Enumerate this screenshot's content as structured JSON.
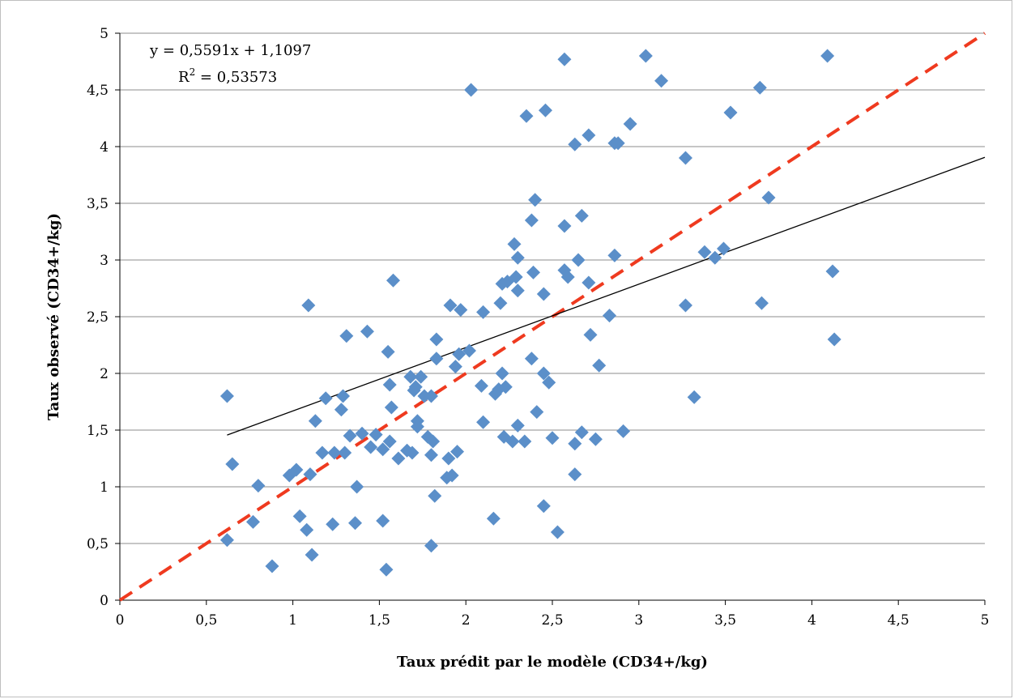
{
  "chart_data": {
    "type": "scatter",
    "title": "",
    "xlabel": "Taux prédit par le modèle (CD34+/kg)",
    "ylabel": "Taux observé (CD34+/kg)",
    "xlim": [
      0,
      5
    ],
    "ylim": [
      0,
      5
    ],
    "x_ticks": [
      "0",
      "0,5",
      "1",
      "1,5",
      "2",
      "2,5",
      "3",
      "3,5",
      "4",
      "4,5",
      "5"
    ],
    "y_ticks": [
      "0",
      "0,5",
      "1",
      "1,5",
      "2",
      "2,5",
      "3",
      "3,5",
      "4",
      "4,5",
      "5"
    ],
    "grid": "horizontal",
    "legend": "none",
    "marker_color": "#5b8fc9",
    "series": [
      {
        "marker": "diamond",
        "points": [
          [
            0.62,
            0.53
          ],
          [
            0.62,
            1.8
          ],
          [
            0.65,
            1.2
          ],
          [
            0.77,
            0.69
          ],
          [
            0.8,
            1.01
          ],
          [
            0.88,
            0.3
          ],
          [
            0.98,
            1.1
          ],
          [
            1.02,
            1.15
          ],
          [
            1.04,
            0.74
          ],
          [
            1.08,
            0.62
          ],
          [
            1.09,
            2.6
          ],
          [
            1.1,
            1.11
          ],
          [
            1.11,
            0.4
          ],
          [
            1.13,
            1.58
          ],
          [
            1.17,
            1.3
          ],
          [
            1.19,
            1.78
          ],
          [
            1.23,
            0.67
          ],
          [
            1.24,
            1.3
          ],
          [
            1.28,
            1.68
          ],
          [
            1.29,
            1.8
          ],
          [
            1.3,
            1.3
          ],
          [
            1.31,
            2.33
          ],
          [
            1.33,
            1.45
          ],
          [
            1.36,
            0.68
          ],
          [
            1.37,
            1.0
          ],
          [
            1.4,
            1.47
          ],
          [
            1.43,
            2.37
          ],
          [
            1.45,
            1.35
          ],
          [
            1.48,
            1.46
          ],
          [
            1.52,
            1.33
          ],
          [
            1.52,
            0.7
          ],
          [
            1.54,
            0.27
          ],
          [
            1.55,
            2.19
          ],
          [
            1.56,
            1.4
          ],
          [
            1.56,
            1.9
          ],
          [
            1.57,
            1.7
          ],
          [
            1.58,
            2.82
          ],
          [
            1.61,
            1.25
          ],
          [
            1.66,
            1.32
          ],
          [
            1.68,
            1.97
          ],
          [
            1.69,
            1.3
          ],
          [
            1.7,
            1.85
          ],
          [
            1.71,
            1.88
          ],
          [
            1.72,
            1.58
          ],
          [
            1.72,
            1.53
          ],
          [
            1.74,
            1.97
          ],
          [
            1.76,
            1.8
          ],
          [
            1.78,
            1.44
          ],
          [
            1.8,
            0.48
          ],
          [
            1.8,
            1.28
          ],
          [
            1.8,
            1.8
          ],
          [
            1.81,
            1.4
          ],
          [
            1.82,
            0.92
          ],
          [
            1.83,
            2.3
          ],
          [
            1.83,
            2.13
          ],
          [
            1.89,
            1.08
          ],
          [
            1.9,
            1.25
          ],
          [
            1.91,
            2.6
          ],
          [
            1.92,
            1.1
          ],
          [
            1.94,
            2.06
          ],
          [
            1.95,
            1.31
          ],
          [
            1.96,
            2.17
          ],
          [
            1.97,
            2.56
          ],
          [
            2.02,
            2.2
          ],
          [
            2.03,
            4.5
          ],
          [
            2.09,
            1.89
          ],
          [
            2.1,
            2.54
          ],
          [
            2.1,
            1.57
          ],
          [
            2.16,
            0.72
          ],
          [
            2.17,
            1.82
          ],
          [
            2.19,
            1.86
          ],
          [
            2.2,
            2.62
          ],
          [
            2.21,
            2.0
          ],
          [
            2.21,
            2.79
          ],
          [
            2.22,
            1.44
          ],
          [
            2.23,
            1.88
          ],
          [
            2.24,
            2.81
          ],
          [
            2.27,
            1.4
          ],
          [
            2.28,
            3.14
          ],
          [
            2.29,
            2.85
          ],
          [
            2.3,
            2.73
          ],
          [
            2.3,
            3.02
          ],
          [
            2.3,
            1.54
          ],
          [
            2.34,
            1.4
          ],
          [
            2.35,
            4.27
          ],
          [
            2.38,
            3.35
          ],
          [
            2.38,
            2.13
          ],
          [
            2.39,
            2.89
          ],
          [
            2.4,
            3.53
          ],
          [
            2.41,
            1.66
          ],
          [
            2.45,
            2.7
          ],
          [
            2.45,
            2.0
          ],
          [
            2.45,
            0.83
          ],
          [
            2.46,
            4.32
          ],
          [
            2.48,
            1.92
          ],
          [
            2.5,
            1.43
          ],
          [
            2.53,
            0.6
          ],
          [
            2.57,
            4.77
          ],
          [
            2.57,
            3.3
          ],
          [
            2.57,
            2.91
          ],
          [
            2.59,
            2.85
          ],
          [
            2.63,
            4.02
          ],
          [
            2.63,
            1.38
          ],
          [
            2.63,
            1.11
          ],
          [
            2.65,
            3.0
          ],
          [
            2.67,
            1.48
          ],
          [
            2.67,
            3.39
          ],
          [
            2.71,
            4.1
          ],
          [
            2.71,
            2.8
          ],
          [
            2.72,
            2.34
          ],
          [
            2.75,
            1.42
          ],
          [
            2.77,
            2.07
          ],
          [
            2.83,
            2.51
          ],
          [
            2.86,
            3.04
          ],
          [
            2.86,
            4.03
          ],
          [
            2.88,
            4.03
          ],
          [
            2.91,
            1.49
          ],
          [
            2.95,
            4.2
          ],
          [
            3.04,
            4.8
          ],
          [
            3.13,
            4.58
          ],
          [
            3.27,
            3.9
          ],
          [
            3.27,
            2.6
          ],
          [
            3.32,
            1.79
          ],
          [
            3.38,
            3.07
          ],
          [
            3.44,
            3.02
          ],
          [
            3.49,
            3.1
          ],
          [
            3.53,
            4.3
          ],
          [
            3.7,
            4.52
          ],
          [
            3.71,
            2.62
          ],
          [
            3.75,
            3.55
          ],
          [
            4.09,
            4.8
          ],
          [
            4.12,
            2.9
          ],
          [
            4.13,
            2.3
          ]
        ]
      }
    ],
    "trendline": {
      "slope": 0.5591,
      "intercept": 1.1097,
      "x_range": [
        0.62,
        5
      ],
      "color": "#000000",
      "equation_text": "y = 0,5591x + 1,1097",
      "r2_label": "R",
      "r2_sup": "2",
      "r2_value": " = 0,53573"
    },
    "identity_line": {
      "x_range": [
        0,
        5
      ],
      "color": "#ef3a1f",
      "style": "dashed"
    }
  }
}
